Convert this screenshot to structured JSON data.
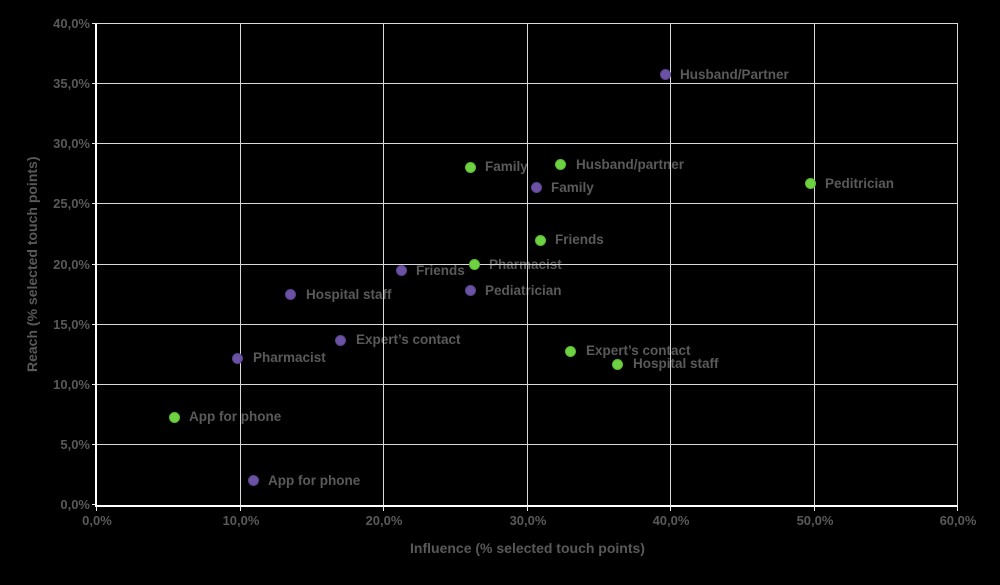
{
  "chart": {
    "background_color": "#000000",
    "grid_color": "#d9d9d9",
    "axis_color": "#ffffff",
    "text_color": "#595959"
  },
  "chart_data": {
    "type": "scatter",
    "xlabel": "Influence (% selected touch points)",
    "ylabel": "Reach (% selected touch points)",
    "xlim": [
      0,
      60
    ],
    "ylim": [
      0,
      40
    ],
    "grid": true,
    "legend_position": "none",
    "x_tick_values": [
      0,
      10,
      20,
      30,
      40,
      50,
      60
    ],
    "x_tick_labels": [
      "0,0%",
      "10,0%",
      "20,0%",
      "30,0%",
      "40,0%",
      "50,0%",
      "60,0%"
    ],
    "y_tick_values": [
      0,
      5,
      10,
      15,
      20,
      25,
      30,
      35,
      40
    ],
    "y_tick_labels": [
      "0,0%",
      "5,0%",
      "10,0%",
      "15,0%",
      "20,0%",
      "25,0%",
      "30,0%",
      "35,0%",
      "40,0%"
    ],
    "series": [
      {
        "name": "purple-segment",
        "color": "#6c52a4",
        "border_color": "#5a4390",
        "points": [
          {
            "label": "Husband/Partner",
            "x": 39.6,
            "y": 35.8
          },
          {
            "label": "Family",
            "x": 30.6,
            "y": 26.4
          },
          {
            "label": "Friends",
            "x": 21.2,
            "y": 19.5
          },
          {
            "label": "Pediatrician",
            "x": 26.0,
            "y": 17.8
          },
          {
            "label": "Hospital staff",
            "x": 13.5,
            "y": 17.5
          },
          {
            "label": "Expert’s contact",
            "x": 17.0,
            "y": 13.7
          },
          {
            "label": "Pharmacist",
            "x": 9.8,
            "y": 12.2
          },
          {
            "label": "App for phone",
            "x": 10.9,
            "y": 2.0
          }
        ]
      },
      {
        "name": "green-segment",
        "color": "#6fd243",
        "border_color": "#5bbd31",
        "points": [
          {
            "label": "Family",
            "x": 26.0,
            "y": 28.1
          },
          {
            "label": "Husband/partner",
            "x": 32.3,
            "y": 28.3
          },
          {
            "label": "Peditrician",
            "x": 49.7,
            "y": 26.7
          },
          {
            "label": "Friends",
            "x": 30.9,
            "y": 22.0
          },
          {
            "label": "Pharmacist",
            "x": 26.3,
            "y": 20.0
          },
          {
            "label": "Expert’s contact",
            "x": 33.0,
            "y": 12.8
          },
          {
            "label": "Hospital staff",
            "x": 36.3,
            "y": 11.7
          },
          {
            "label": "App for phone",
            "x": 5.4,
            "y": 7.3
          }
        ]
      }
    ]
  }
}
